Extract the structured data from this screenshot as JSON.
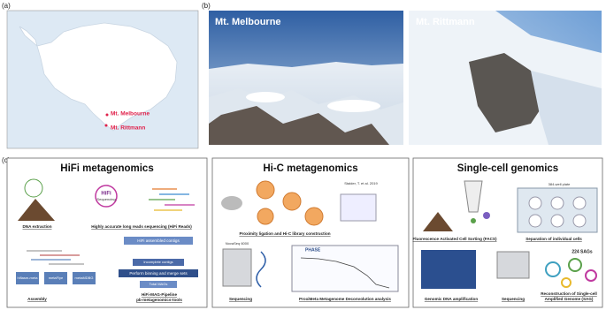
{
  "panels": {
    "a": {
      "label": "(a)",
      "map_labels": [
        "Mt. Melbourne",
        "Mt. Rittmann"
      ]
    },
    "b": {
      "label": "(b)",
      "photo_titles": [
        "Mt. Melbourne",
        "Mt. Rittmann"
      ]
    },
    "c": {
      "label": "(c)",
      "hifi": {
        "title": "HiFi metagenomics",
        "steps": [
          "DNA extraction",
          "Highly accurate long reads sequencing (HiFi Reads)",
          "Assembly",
          "HiFi-MAG-Pipeline",
          "pb-metagenomics-tools"
        ],
        "annotations": [
          "HiFi",
          "Sequencing",
          "HiFi assembled contigs",
          "Incomplete contigs",
          "Perform binning and merge sets",
          "Total MAGs",
          "hifiasm-meta",
          "metaFlye",
          "metaMDBG"
        ]
      },
      "hic": {
        "title": "Hi-C metagenomics",
        "steps": [
          "Proximity ligation and Hi-C library construction",
          "Sequencing",
          "ProxiMeta Metagenome Deconvolution analysis"
        ],
        "annotations": [
          "Stalder, T. et al. 2019",
          "NovaSeq 6000",
          "PHASE"
        ]
      },
      "sc": {
        "title": "Single-cell genomics",
        "steps": [
          "Fluorescence Activated Cell Sorting (FACS)",
          "Separation of individual cells",
          "Genomic DNA amplification",
          "Sequencing",
          "Reconstruction of Single-cell",
          "Amplified Genome (SAG)"
        ],
        "annotations": [
          "384-well plate",
          "224 SAGs"
        ]
      }
    }
  }
}
